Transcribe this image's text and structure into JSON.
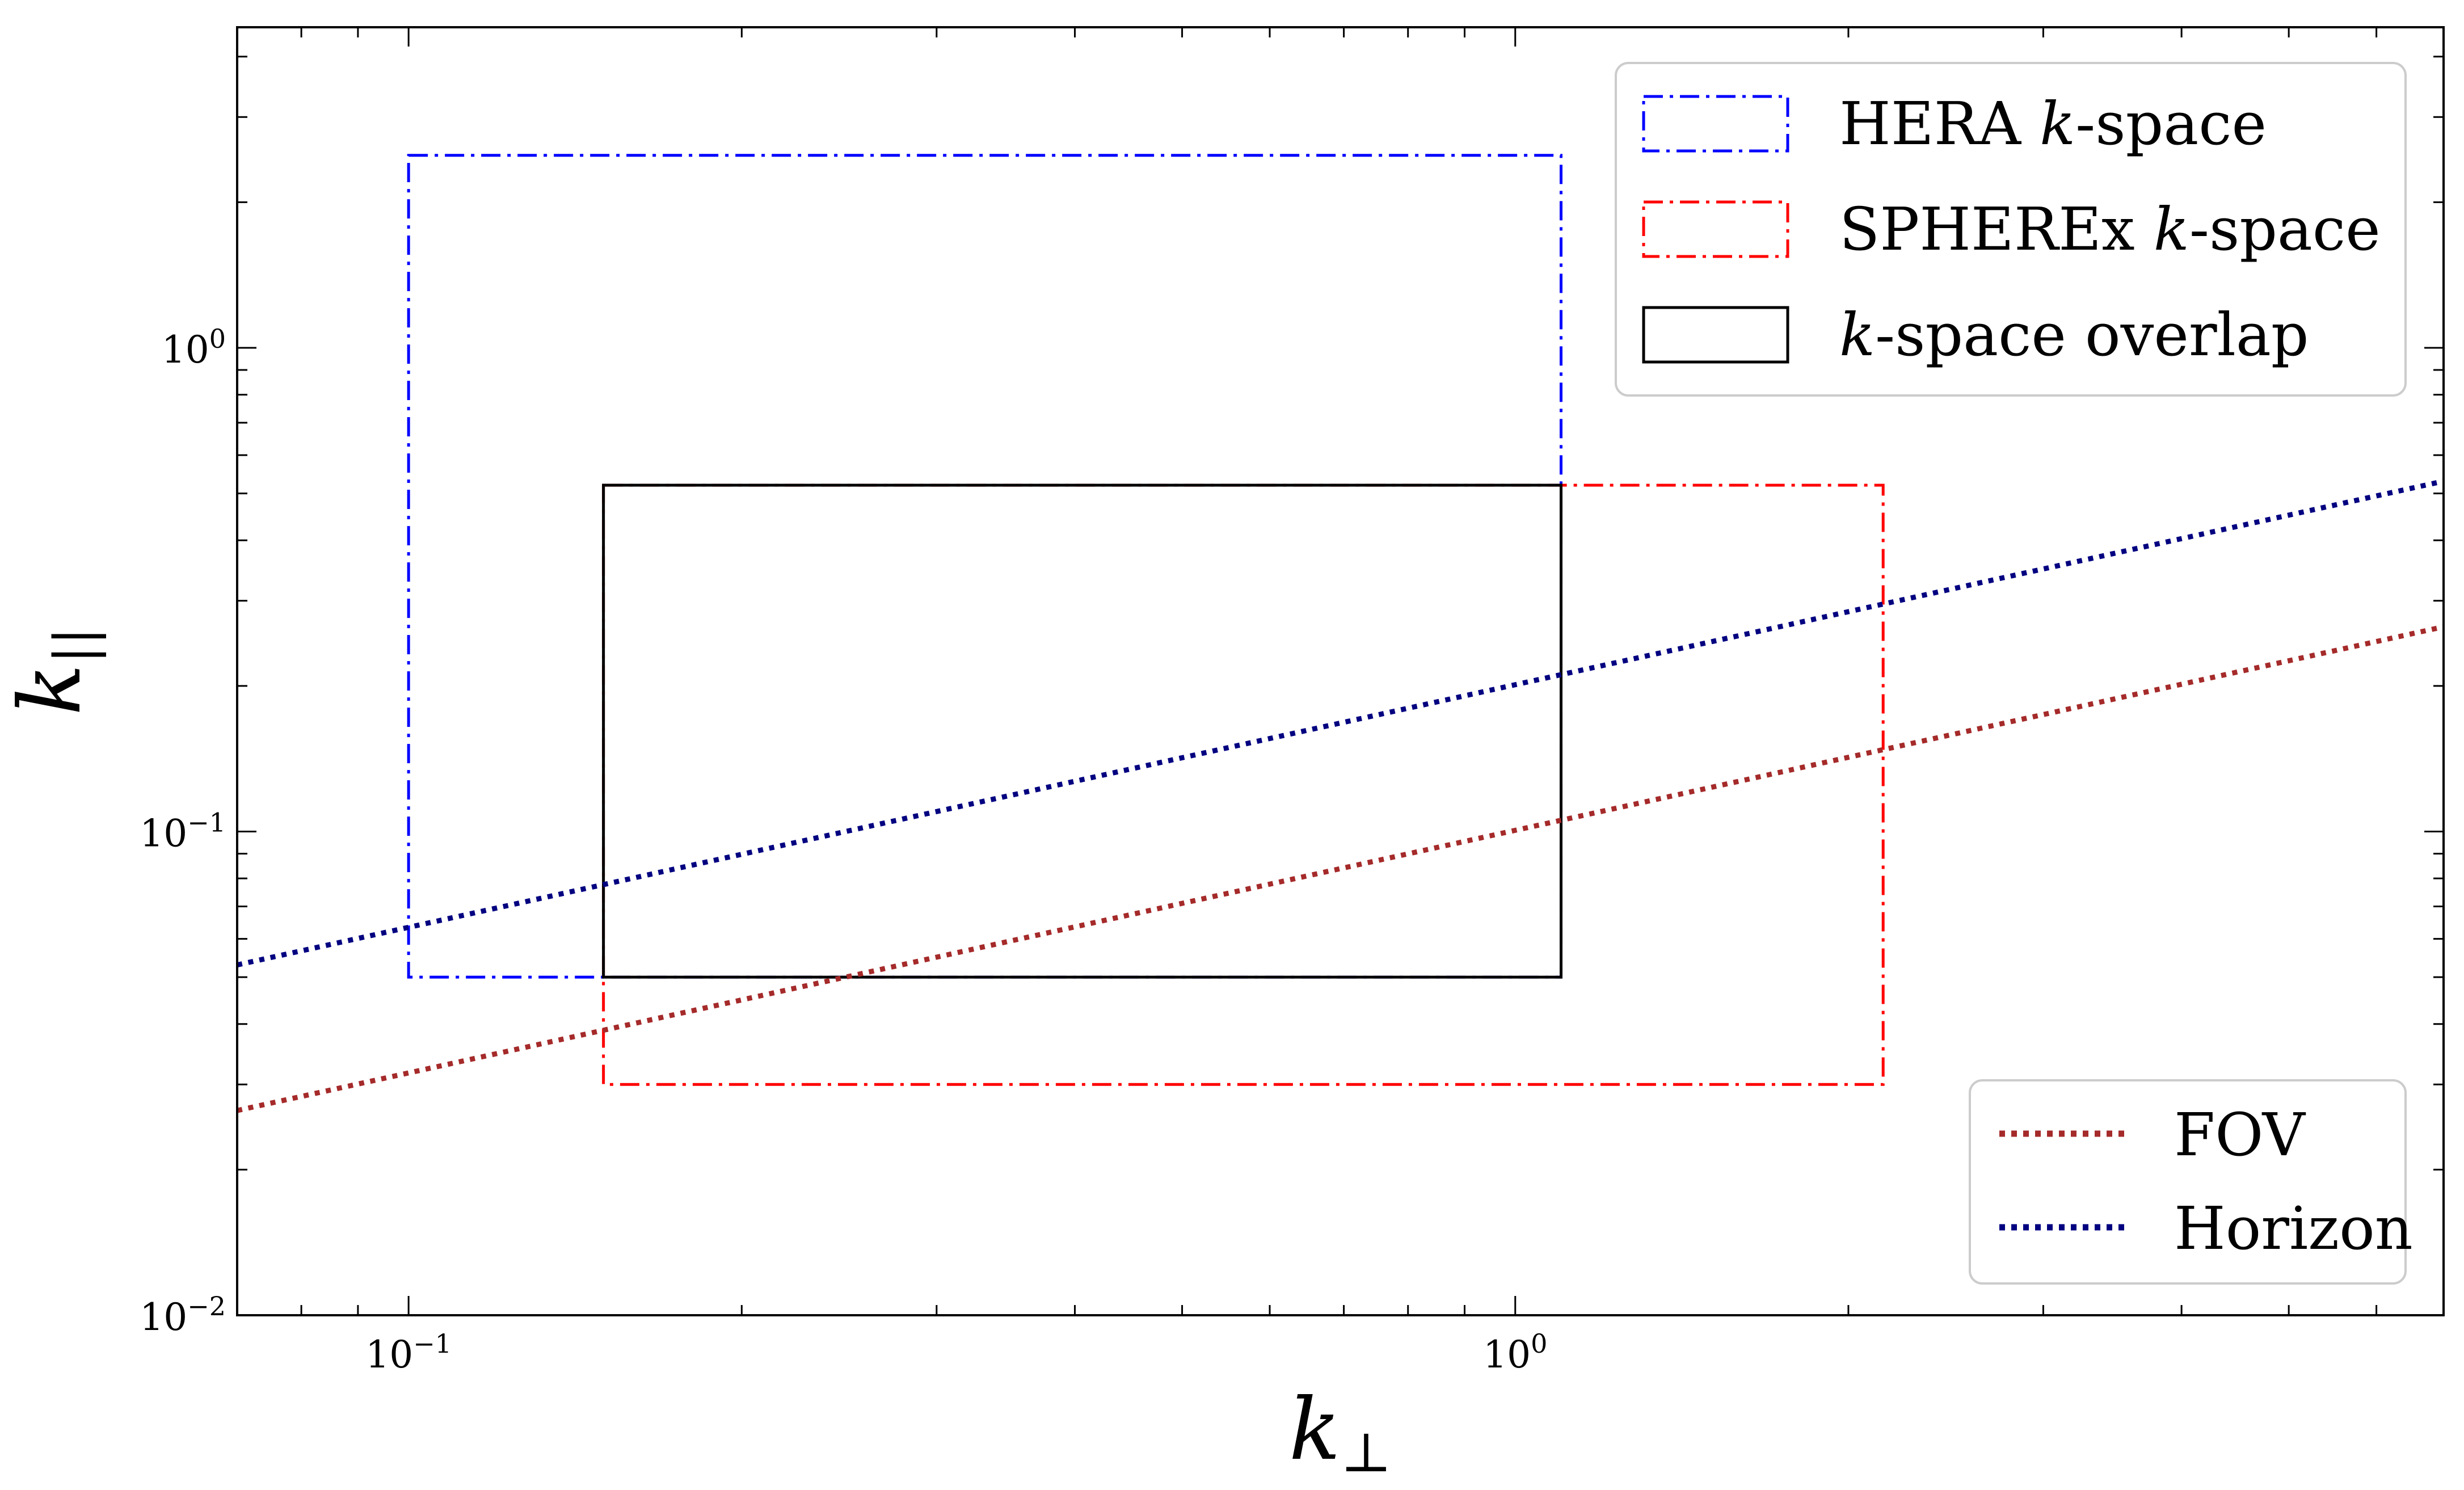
{
  "chart_data": {
    "type": "line",
    "xlabel": "k",
    "xlabel_sub": "⊥",
    "ylabel": "k",
    "ylabel_sub": "||",
    "x_scale": "log",
    "y_scale": "log",
    "xlim": [
      0.07,
      6.9
    ],
    "ylim": [
      0.01,
      4.6
    ],
    "grid": false,
    "x_ticks": [
      {
        "value": 0.1,
        "base": "10",
        "exp": "−1"
      },
      {
        "value": 1,
        "base": "10",
        "exp": "0"
      }
    ],
    "y_ticks": [
      {
        "value": 0.01,
        "base": "10",
        "exp": "−2"
      },
      {
        "value": 0.1,
        "base": "10",
        "exp": "−1"
      },
      {
        "value": 1,
        "base": "10",
        "exp": "0"
      }
    ],
    "regions": [
      {
        "name": "HERA k-space",
        "label_pre": "HERA ",
        "label_k": "k",
        "label_post": "-space",
        "color": "#0000ff",
        "dash": "dashdot",
        "x": [
          0.1,
          1.1
        ],
        "y": [
          0.05,
          2.5
        ]
      },
      {
        "name": "SPHEREx k-space",
        "label_pre": "SPHEREx ",
        "label_k": "k",
        "label_post": "-space",
        "color": "#ff0000",
        "dash": "dashdot",
        "x": [
          0.15,
          2.15
        ],
        "y": [
          0.03,
          0.52
        ]
      },
      {
        "name": "k-space overlap",
        "label_pre": "",
        "label_k": "k",
        "label_post": "-space overlap",
        "color": "#000000",
        "dash": "solid",
        "x": [
          0.15,
          1.1
        ],
        "y": [
          0.05,
          0.52
        ]
      }
    ],
    "series": [
      {
        "name": "FOV",
        "color": "#a52a2a",
        "dash": "dotted",
        "x": [
          0.07,
          6.9
        ],
        "y": [
          0.0265,
          0.265
        ]
      },
      {
        "name": "Horizon",
        "color": "#000080",
        "dash": "dotted",
        "x": [
          0.07,
          6.9
        ],
        "y": [
          0.053,
          0.53
        ]
      }
    ],
    "legend_regions_position": "top-right",
    "legend_lines_position": "bottom-right"
  }
}
